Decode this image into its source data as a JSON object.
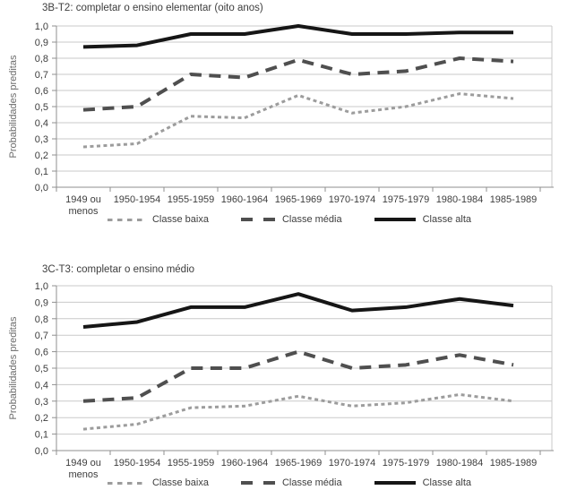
{
  "figure": {
    "background": "#ffffff",
    "panel_count": 2
  },
  "colors": {
    "grid": "#c9c9c9",
    "axis": "#8f8f8f",
    "tick_text": "#3d3d3d",
    "title_text": "#3d3d3d",
    "ylabel_text": "#6b6b6b",
    "background": "#ffffff"
  },
  "chart_data": [
    {
      "type": "line",
      "title": "3B-T2: completar o ensino elementar (oito anos)",
      "xlabel": "",
      "ylabel": "Probabilidades preditas",
      "ylim": [
        0.0,
        1.0
      ],
      "grid": true,
      "legend_position": "bottom",
      "ytick_labels": [
        "0,0",
        "0,1",
        "0,2",
        "0,3",
        "0,4",
        "0,5",
        "0,6",
        "0,7",
        "0,8",
        "0,9",
        "1,0"
      ],
      "categories": [
        "1949 ou\nmenos",
        "1950-1954",
        "1955-1959",
        "1960-1964",
        "1965-1969",
        "1970-1974",
        "1975-1979",
        "1980-1984",
        "1985-1989"
      ],
      "series": [
        {
          "name": "Classe baixa",
          "style": "dotted",
          "color": "#9c9c9c",
          "values": [
            0.25,
            0.27,
            0.44,
            0.43,
            0.57,
            0.46,
            0.5,
            0.58,
            0.55
          ]
        },
        {
          "name": "Classe média",
          "style": "dashed",
          "color": "#4f4f4f",
          "values": [
            0.48,
            0.5,
            0.7,
            0.68,
            0.79,
            0.7,
            0.72,
            0.8,
            0.78
          ]
        },
        {
          "name": "Classe alta",
          "style": "solid",
          "color": "#161616",
          "values": [
            0.87,
            0.88,
            0.95,
            0.95,
            1.0,
            0.95,
            0.95,
            0.96,
            0.96
          ]
        }
      ]
    },
    {
      "type": "line",
      "title": "3C-T3: completar o ensino médio",
      "xlabel": "",
      "ylabel": "Probabilidades preditas",
      "ylim": [
        0.0,
        1.0
      ],
      "grid": true,
      "legend_position": "bottom",
      "ytick_labels": [
        "0,0",
        "0,1",
        "0,2",
        "0,3",
        "0,4",
        "0,5",
        "0,6",
        "0,7",
        "0,8",
        "0,9",
        "1,0"
      ],
      "categories": [
        "1949 ou\nmenos",
        "1950-1954",
        "1955-1959",
        "1960-1964",
        "1965-1969",
        "1970-1974",
        "1975-1979",
        "1980-1984",
        "1985-1989"
      ],
      "series": [
        {
          "name": "Classe baixa",
          "style": "dotted",
          "color": "#9c9c9c",
          "values": [
            0.13,
            0.16,
            0.26,
            0.27,
            0.33,
            0.27,
            0.29,
            0.34,
            0.3
          ]
        },
        {
          "name": "Classe média",
          "style": "dashed",
          "color": "#4f4f4f",
          "values": [
            0.3,
            0.32,
            0.5,
            0.5,
            0.6,
            0.5,
            0.52,
            0.58,
            0.52
          ]
        },
        {
          "name": "Classe alta",
          "style": "solid",
          "color": "#161616",
          "values": [
            0.75,
            0.78,
            0.87,
            0.87,
            0.95,
            0.85,
            0.87,
            0.92,
            0.88
          ]
        }
      ]
    }
  ]
}
